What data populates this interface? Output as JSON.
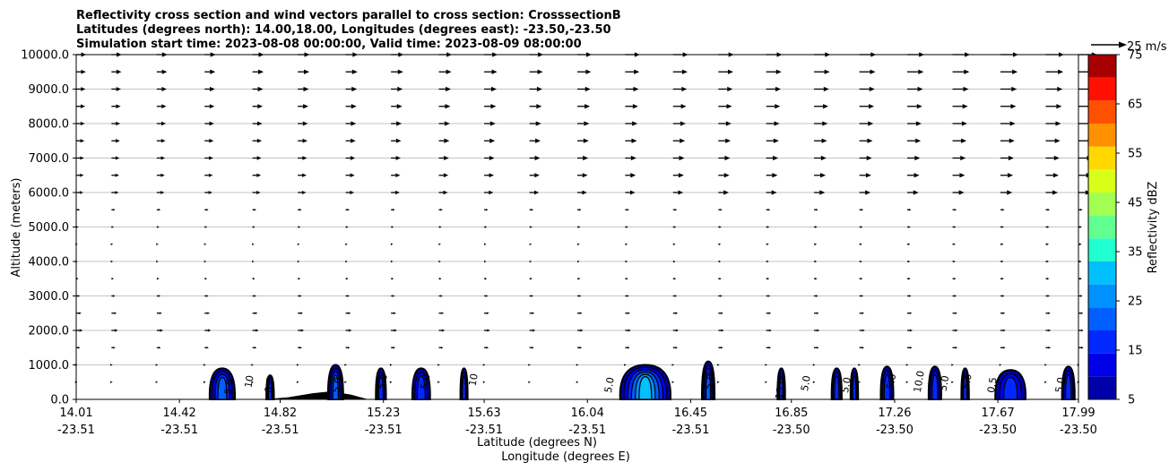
{
  "chart_data": {
    "type": "heatmap",
    "title_lines": [
      "Reflectivity cross section and wind vectors parallel to cross section: CrosssectionB",
      "Latitudes (degrees north): 14.00,18.00, Longitudes (degrees east): -23.50,-23.50",
      "Simulation start time: 2023-08-08 00:00:00, Valid time: 2023-08-09 08:00:00"
    ],
    "xlabel": "Latitude (degrees N)",
    "xlabel2": "Longitude (degrees E)",
    "ylabel": "Altitude (meters)",
    "x_range": [
      14.01,
      17.99
    ],
    "ylim": [
      0,
      10000
    ],
    "y_ticks": [
      "0.0",
      "1000.0",
      "2000.0",
      "3000.0",
      "4000.0",
      "5000.0",
      "6000.0",
      "7000.0",
      "8000.0",
      "9000.0",
      "10000.0"
    ],
    "y_tick_values": [
      0,
      1000,
      2000,
      3000,
      4000,
      5000,
      6000,
      7000,
      8000,
      9000,
      10000
    ],
    "x_ticks": [
      {
        "lat": "14.01",
        "lon": "-23.51",
        "value": 14.01
      },
      {
        "lat": "14.42",
        "lon": "-23.51",
        "value": 14.42
      },
      {
        "lat": "14.82",
        "lon": "-23.51",
        "value": 14.82
      },
      {
        "lat": "15.23",
        "lon": "-23.51",
        "value": 15.23
      },
      {
        "lat": "15.63",
        "lon": "-23.51",
        "value": 15.63
      },
      {
        "lat": "16.04",
        "lon": "-23.51",
        "value": 16.04
      },
      {
        "lat": "16.45",
        "lon": "-23.51",
        "value": 16.45
      },
      {
        "lat": "16.85",
        "lon": "-23.50",
        "value": 16.85
      },
      {
        "lat": "17.26",
        "lon": "-23.50",
        "value": 17.26
      },
      {
        "lat": "17.67",
        "lon": "-23.50",
        "value": 17.67
      },
      {
        "lat": "17.99",
        "lon": "-23.50",
        "value": 17.99
      }
    ],
    "grid": "horizontal",
    "colorbar": {
      "label": "Reflectivity dBZ",
      "levels": [
        5,
        10,
        15,
        20,
        25,
        30,
        35,
        40,
        45,
        50,
        55,
        60,
        65,
        70,
        75
      ],
      "tick_labels": [
        "5",
        "15",
        "25",
        "35",
        "45",
        "55",
        "65",
        "75"
      ],
      "colors": [
        "#0000a8",
        "#0000e8",
        "#0028ff",
        "#0060ff",
        "#0090ff",
        "#00c0ff",
        "#20ffd0",
        "#60ff90",
        "#a0ff50",
        "#d8ff18",
        "#ffd800",
        "#ff9000",
        "#ff5000",
        "#ff1000",
        "#a80000"
      ]
    },
    "quiver_key": {
      "label": "25 m/s",
      "speed": 25
    },
    "wind_vector_levels_m": [
      500,
      1000,
      1500,
      2000,
      2500,
      3000,
      3500,
      4000,
      4500,
      5000,
      5500,
      6000,
      6500,
      7000,
      7500,
      8000,
      8500,
      9000,
      9500,
      10000
    ],
    "wind_vector_columns_lat": [
      14.01,
      14.15,
      14.33,
      14.52,
      14.71,
      14.89,
      15.08,
      15.26,
      15.45,
      15.63,
      15.81,
      16.0,
      16.19,
      16.38,
      16.56,
      16.75,
      16.94,
      17.12,
      17.31,
      17.49,
      17.68,
      17.86,
      17.99
    ],
    "reflectivity_cells": [
      {
        "lat": 14.59,
        "top_m": 900,
        "width_deg": 0.1,
        "max_dbz": 20
      },
      {
        "lat": 14.78,
        "top_m": 700,
        "width_deg": 0.03,
        "max_dbz": 15
      },
      {
        "lat": 15.04,
        "top_m": 1000,
        "width_deg": 0.06,
        "max_dbz": 20
      },
      {
        "lat": 15.22,
        "top_m": 900,
        "width_deg": 0.04,
        "max_dbz": 15
      },
      {
        "lat": 15.38,
        "top_m": 900,
        "width_deg": 0.07,
        "max_dbz": 15
      },
      {
        "lat": 15.55,
        "top_m": 900,
        "width_deg": 0.02,
        "max_dbz": 15
      },
      {
        "lat": 16.27,
        "top_m": 1000,
        "width_deg": 0.2,
        "max_dbz": 30
      },
      {
        "lat": 16.52,
        "top_m": 1100,
        "width_deg": 0.05,
        "max_dbz": 20
      },
      {
        "lat": 16.81,
        "top_m": 900,
        "width_deg": 0.03,
        "max_dbz": 15
      },
      {
        "lat": 17.03,
        "top_m": 900,
        "width_deg": 0.04,
        "max_dbz": 15
      },
      {
        "lat": 17.1,
        "top_m": 900,
        "width_deg": 0.03,
        "max_dbz": 15
      },
      {
        "lat": 17.23,
        "top_m": 950,
        "width_deg": 0.05,
        "max_dbz": 15
      },
      {
        "lat": 17.42,
        "top_m": 950,
        "width_deg": 0.05,
        "max_dbz": 15
      },
      {
        "lat": 17.54,
        "top_m": 900,
        "width_deg": 0.03,
        "max_dbz": 15
      },
      {
        "lat": 17.72,
        "top_m": 850,
        "width_deg": 0.12,
        "max_dbz": 15
      },
      {
        "lat": 17.95,
        "top_m": 950,
        "width_deg": 0.05,
        "max_dbz": 15
      }
    ],
    "contour_labels": [
      {
        "text": "5.0",
        "lat": 14.63,
        "alt": 350
      },
      {
        "text": "10",
        "lat": 14.71,
        "alt": 500
      },
      {
        "text": "0.5",
        "lat": 14.79,
        "alt": 400
      },
      {
        "text": "5.0",
        "lat": 15.06,
        "alt": 400
      },
      {
        "text": "5.0",
        "lat": 15.24,
        "alt": 500
      },
      {
        "text": "5.0",
        "lat": 15.41,
        "alt": 500
      },
      {
        "text": "10",
        "lat": 15.6,
        "alt": 550
      },
      {
        "text": "5.0",
        "lat": 16.14,
        "alt": 400
      },
      {
        "text": "5.0",
        "lat": 16.54,
        "alt": 500
      },
      {
        "text": "15.0",
        "lat": 16.82,
        "alt": 300
      },
      {
        "text": "5.0",
        "lat": 16.92,
        "alt": 450
      },
      {
        "text": "5.0",
        "lat": 17.08,
        "alt": 400
      },
      {
        "text": "5.0",
        "lat": 17.26,
        "alt": 500
      },
      {
        "text": "10.0",
        "lat": 17.37,
        "alt": 500
      },
      {
        "text": "5.0",
        "lat": 17.47,
        "alt": 450
      },
      {
        "text": "5.0",
        "lat": 17.56,
        "alt": 500
      },
      {
        "text": "0.5",
        "lat": 17.66,
        "alt": 400
      },
      {
        "text": "5.0",
        "lat": 17.93,
        "alt": 400
      }
    ],
    "terrain": [
      {
        "lat": 14.75,
        "alt": 0
      },
      {
        "lat": 14.85,
        "alt": 60
      },
      {
        "lat": 14.95,
        "alt": 180
      },
      {
        "lat": 15.02,
        "alt": 230
      },
      {
        "lat": 15.1,
        "alt": 140
      },
      {
        "lat": 15.17,
        "alt": 0
      }
    ]
  }
}
